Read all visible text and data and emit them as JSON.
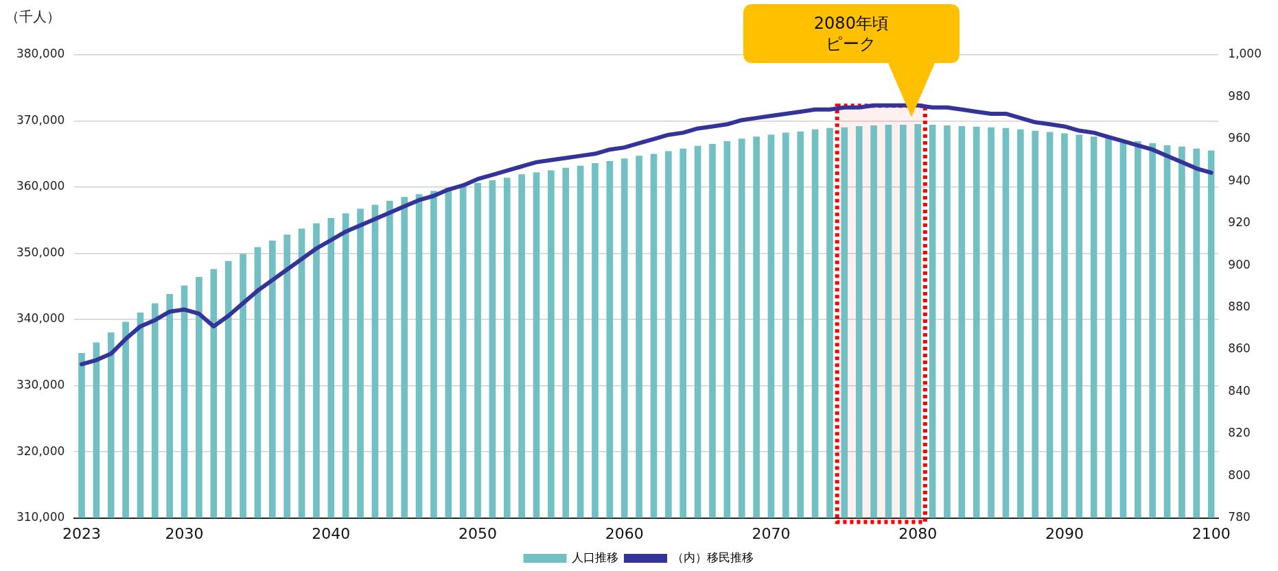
{
  "chart_data": {
    "type": "bar",
    "ylabel": "（千人）",
    "x": [
      2023,
      2024,
      2025,
      2026,
      2027,
      2028,
      2029,
      2030,
      2031,
      2032,
      2033,
      2034,
      2035,
      2036,
      2037,
      2038,
      2039,
      2040,
      2041,
      2042,
      2043,
      2044,
      2045,
      2046,
      2047,
      2048,
      2049,
      2050,
      2051,
      2052,
      2053,
      2054,
      2055,
      2056,
      2057,
      2058,
      2059,
      2060,
      2061,
      2062,
      2063,
      2064,
      2065,
      2066,
      2067,
      2068,
      2069,
      2070,
      2071,
      2072,
      2073,
      2074,
      2075,
      2076,
      2077,
      2078,
      2079,
      2080,
      2081,
      2082,
      2083,
      2084,
      2085,
      2086,
      2087,
      2088,
      2089,
      2090,
      2091,
      2092,
      2093,
      2094,
      2095,
      2096,
      2097,
      2098,
      2099,
      2100
    ],
    "xlim": [
      2022.5,
      2100.5
    ],
    "xticks": [
      2023,
      2030,
      2040,
      2050,
      2060,
      2070,
      2080,
      2090,
      2100
    ],
    "ylim": [
      310000,
      380000
    ],
    "yticks": [
      {
        "value": 310000,
        "label": "310,000"
      },
      {
        "value": 320000,
        "label": "320,000"
      },
      {
        "value": 330000,
        "label": "330,000"
      },
      {
        "value": 340000,
        "label": "340,000"
      },
      {
        "value": 350000,
        "label": "350,000"
      },
      {
        "value": 360000,
        "label": "360,000"
      },
      {
        "value": 370000,
        "label": "370,000"
      },
      {
        "value": 380000,
        "label": "380,000"
      }
    ],
    "y2lim": [
      780,
      1000
    ],
    "y2ticks": [
      780,
      800,
      820,
      840,
      860,
      880,
      900,
      920,
      940,
      960,
      980,
      {
        "value": 1000,
        "label": "1,000"
      }
    ],
    "grid": "y",
    "legend": "bottom",
    "series": [
      {
        "name": "人口推移",
        "color": "#72c0c4",
        "values": [
          334900,
          336500,
          338000,
          339600,
          341000,
          342400,
          343800,
          345100,
          346400,
          347600,
          348800,
          349900,
          350900,
          351900,
          352800,
          353700,
          354500,
          355300,
          356000,
          356700,
          357300,
          357900,
          358500,
          358900,
          359400,
          359900,
          360200,
          360600,
          361000,
          361400,
          361900,
          362200,
          362500,
          362900,
          363200,
          363600,
          363900,
          364300,
          364700,
          365000,
          365400,
          365800,
          366200,
          366500,
          366900,
          367300,
          367600,
          367900,
          368200,
          368400,
          368700,
          368900,
          369000,
          369200,
          369300,
          369400,
          369400,
          369500,
          369400,
          369300,
          369200,
          369100,
          369000,
          368900,
          368700,
          368500,
          368300,
          368100,
          367900,
          367600,
          367400,
          367100,
          366900,
          366600,
          366300,
          366100,
          365800,
          365500
        ]
      },
      {
        "name": "（内）移民推移",
        "type": "line",
        "axis": "y2",
        "color": "#333399",
        "values": [
          853,
          855,
          858,
          865,
          871,
          874,
          878,
          879,
          877,
          871,
          876,
          882,
          888,
          893,
          898,
          903,
          908,
          912,
          916,
          919,
          922,
          925,
          928,
          931,
          933,
          936,
          938,
          941,
          943,
          945,
          947,
          949,
          950,
          951,
          952,
          953,
          955,
          956,
          958,
          960,
          962,
          963,
          965,
          966,
          967,
          969,
          970,
          971,
          972,
          973,
          974,
          974,
          975,
          975,
          976,
          976,
          976,
          976,
          975,
          975,
          974,
          973,
          972,
          972,
          970,
          968,
          967,
          966,
          964,
          963,
          961,
          959,
          957,
          955,
          952,
          949,
          946,
          944
        ]
      }
    ],
    "bands": [
      {
        "axis": "x",
        "from": 2074.5,
        "to": 2080.5,
        "color": "#ff0000"
      }
    ],
    "annotations": [
      "2080年頃ピーク"
    ]
  }
}
